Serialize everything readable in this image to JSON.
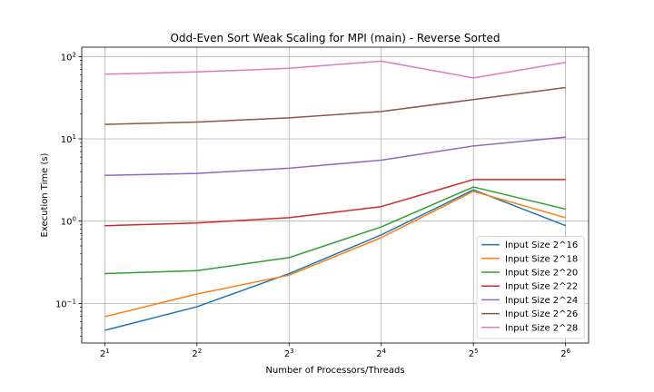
{
  "chart_data": {
    "type": "line",
    "title": "Odd-Even Sort Weak Scaling for MPI (main) - Reverse Sorted",
    "xlabel": "Number of Processors/Threads",
    "ylabel": "Execution Time (s)",
    "yscale": "log",
    "ylim": [
      0.033,
      130
    ],
    "grid": true,
    "legend_position": "lower-right",
    "x_ticks": [
      {
        "value": 2,
        "base": "2",
        "exp": "1"
      },
      {
        "value": 4,
        "base": "2",
        "exp": "2"
      },
      {
        "value": 8,
        "base": "2",
        "exp": "3"
      },
      {
        "value": 16,
        "base": "2",
        "exp": "4"
      },
      {
        "value": 32,
        "base": "2",
        "exp": "5"
      },
      {
        "value": 64,
        "base": "2",
        "exp": "6"
      }
    ],
    "y_ticks": [
      {
        "value": 0.1,
        "base": "10",
        "exp": "−1"
      },
      {
        "value": 1,
        "base": "10",
        "exp": "0"
      },
      {
        "value": 10,
        "base": "10",
        "exp": "1"
      },
      {
        "value": 100,
        "base": "10",
        "exp": "2"
      }
    ],
    "x": [
      2,
      4,
      8,
      16,
      32,
      64
    ],
    "series": [
      {
        "name": "Input Size 2^16",
        "color": "#1f77b4",
        "values": [
          0.047,
          0.091,
          0.23,
          0.68,
          2.4,
          0.88
        ]
      },
      {
        "name": "Input Size 2^18",
        "color": "#ff7f0e",
        "values": [
          0.069,
          0.13,
          0.22,
          0.63,
          2.3,
          1.1
        ]
      },
      {
        "name": "Input Size 2^20",
        "color": "#2ca02c",
        "values": [
          0.23,
          0.25,
          0.36,
          0.85,
          2.6,
          1.4
        ]
      },
      {
        "name": "Input Size 2^22",
        "color": "#d62728",
        "values": [
          0.88,
          0.95,
          1.1,
          1.5,
          3.2,
          3.2
        ]
      },
      {
        "name": "Input Size 2^24",
        "color": "#9467bd",
        "values": [
          3.6,
          3.8,
          4.4,
          5.5,
          8.2,
          10.5
        ]
      },
      {
        "name": "Input Size 2^26",
        "color": "#8c564b",
        "values": [
          15,
          16,
          18,
          21.5,
          30,
          42
        ]
      },
      {
        "name": "Input Size 2^28",
        "color": "#e377c2",
        "values": [
          61,
          65,
          72,
          88,
          55,
          85
        ]
      }
    ]
  }
}
